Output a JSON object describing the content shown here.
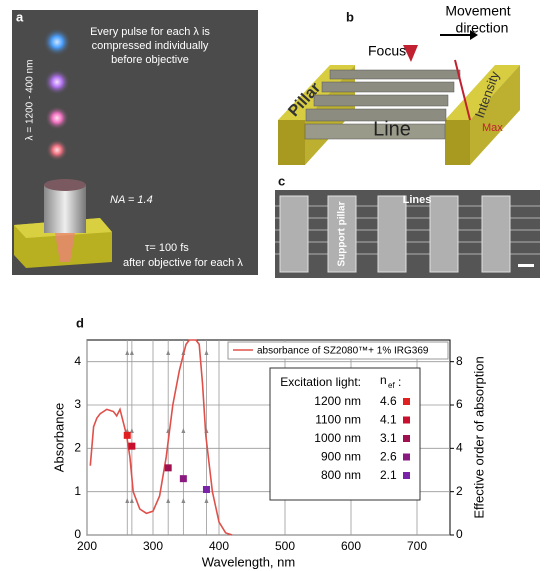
{
  "panels": {
    "a": {
      "label": "a",
      "note_lines": [
        "Every pulse for each λ is",
        "compressed individually",
        "before objective"
      ],
      "wavelength": "λ = 1200 - 400 nm",
      "na": "NA = 1.4",
      "tau": "τ= 100 fs",
      "after": "after objective for each λ"
    },
    "b": {
      "label": "b",
      "movement": [
        "Movement",
        "direction"
      ],
      "focus": "Focus",
      "pillar": "Pillar",
      "line": "Line",
      "intensity": "Intensity",
      "max": "Max"
    },
    "c": {
      "label": "c",
      "lines": "Lines",
      "support": "Support pillar"
    }
  },
  "chart_data": {
    "type": "line",
    "panel_label": "d",
    "xlabel": "Wavelength, nm",
    "ylabel": "Absorbance",
    "y2label": "Effective order of absorption",
    "xlim": [
      200,
      750
    ],
    "ylim": [
      0,
      4.5
    ],
    "y2lim": [
      0,
      9
    ],
    "xticks": [
      200,
      300,
      400,
      500,
      600,
      700
    ],
    "yticks": [
      0,
      1,
      2,
      3,
      4
    ],
    "y2ticks": [
      0,
      2,
      4,
      6,
      8
    ],
    "grid": true,
    "series": [
      {
        "name": "absorbance of SZ2080™+ 1% IRG369",
        "color": "#e0504a",
        "x": [
          205,
          210,
          215,
          220,
          230,
          240,
          245,
          250,
          255,
          260,
          265,
          270,
          280,
          290,
          300,
          310,
          320,
          330,
          340,
          350,
          355,
          365,
          370,
          375,
          380,
          390,
          400,
          410,
          420
        ],
        "values": [
          1.6,
          2.5,
          2.7,
          2.8,
          2.9,
          2.85,
          2.75,
          2.9,
          2.6,
          2.3,
          1.8,
          1.0,
          0.6,
          0.5,
          0.55,
          0.9,
          1.8,
          3.0,
          3.8,
          4.4,
          4.5,
          4.5,
          4.4,
          3.5,
          2.3,
          1.0,
          0.3,
          0.05,
          0
        ]
      }
    ],
    "markers": {
      "x": [
        261,
        268,
        323,
        346,
        381
      ],
      "values": [
        2.3,
        2.05,
        1.55,
        1.3,
        1.05
      ],
      "colors": [
        "#e02020",
        "#c8102e",
        "#a01050",
        "#8a1a80",
        "#7a22a8"
      ]
    },
    "table": {
      "header": "Excitation light:",
      "n_header": "n",
      "n_sub": "ef",
      "colon": ":",
      "labels": [
        "1200 nm",
        "1100 nm",
        "1000 nm",
        "900 nm",
        "800 nm"
      ],
      "n": [
        4.6,
        4.1,
        3.1,
        2.6,
        2.1
      ]
    }
  }
}
